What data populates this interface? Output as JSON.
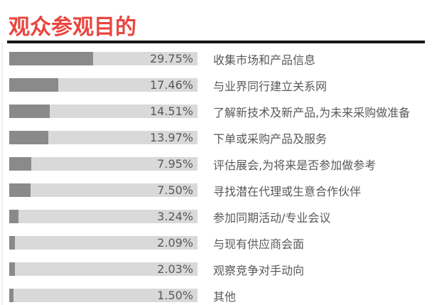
{
  "header": {
    "title": "观众参观目的"
  },
  "colors": {
    "title_red": "#E8463F",
    "underline": "#161616",
    "bar_track": "#D9D9D9",
    "bar_fill": "#8A8A8A",
    "text_gray": "#595959"
  },
  "chart_data": {
    "type": "bar",
    "orientation": "horizontal",
    "title": "观众参观目的",
    "categories": [
      "收集市场和产品信息",
      "与业界同行建立关系网",
      "了解新技术及新产品,为未来采购做准备",
      "下单或采购产品及服务",
      "评估展会,为将来是否参加做参考",
      "寻找潜在代理或生意合作伙伴",
      "参加同期活动/专业会议",
      "与现有供应商会面",
      "观察竞争对手动向",
      "其他"
    ],
    "values": [
      29.75,
      17.46,
      14.51,
      13.97,
      7.95,
      7.5,
      3.24,
      2.09,
      2.03,
      1.5
    ],
    "value_labels": [
      "29.75%",
      "17.46%",
      "14.51%",
      "13.97%",
      "7.95%",
      "7.50%",
      "3.24%",
      "2.09%",
      "2.03%",
      "1.50%"
    ],
    "xlabel": "",
    "ylabel": "",
    "xlim": [
      0,
      67
    ],
    "grid": false,
    "legend": false,
    "bar_color_name": "gray",
    "value_label_position": "inside-track-right"
  }
}
